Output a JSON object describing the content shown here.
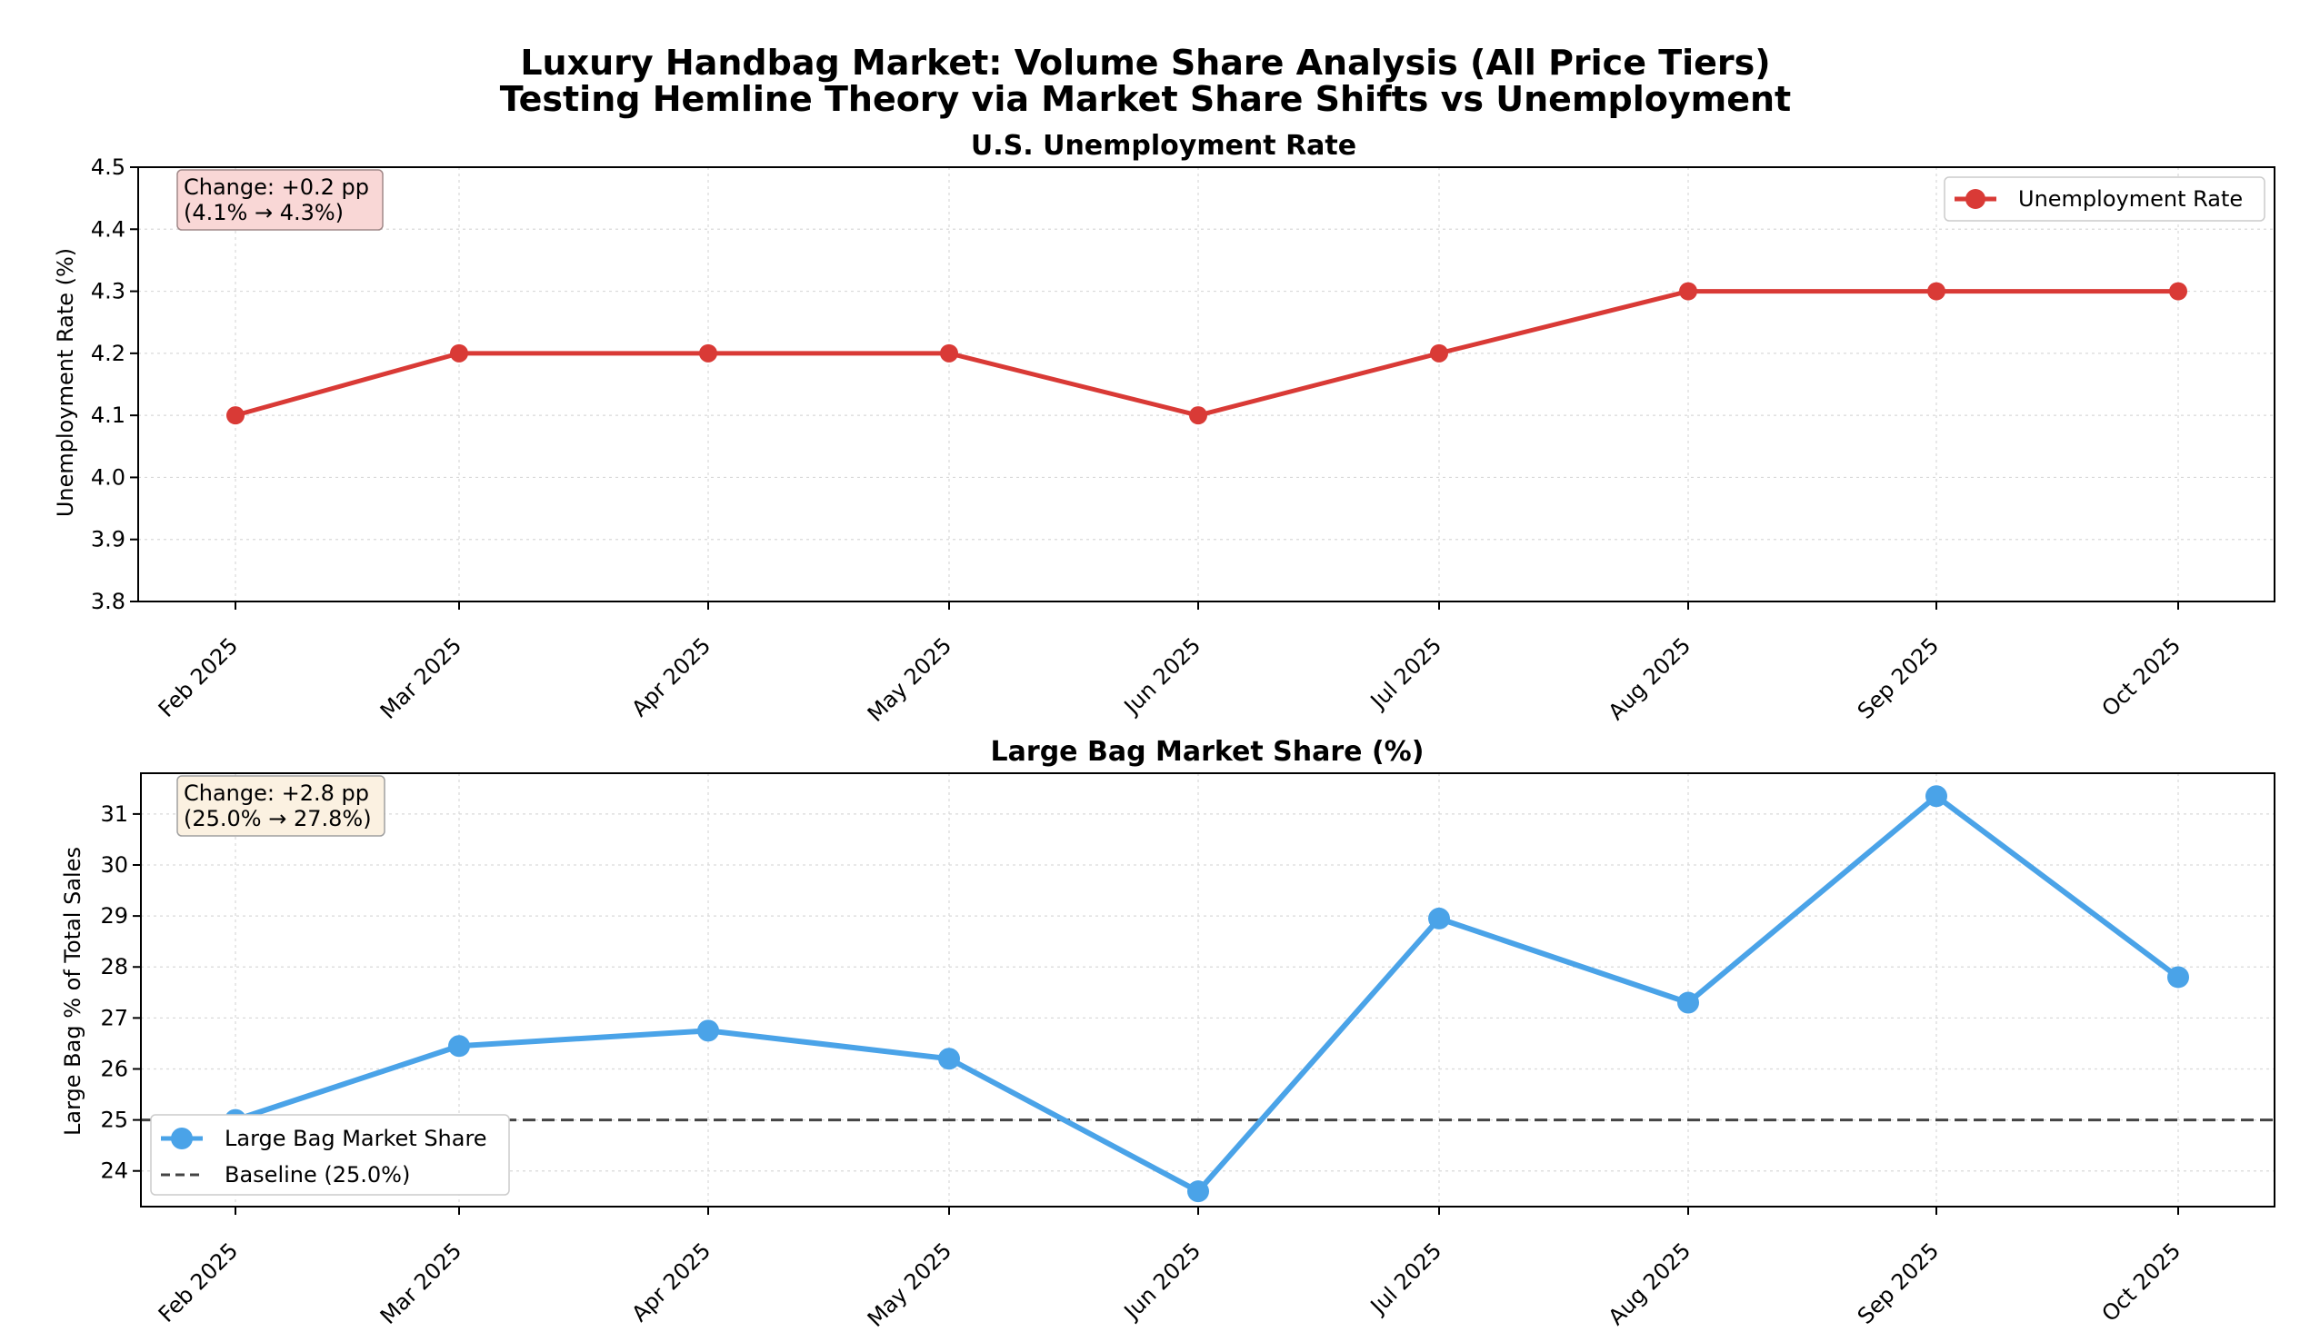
{
  "suptitle": {
    "line1": "Luxury Handbag Market: Volume Share Analysis (All Price Tiers)",
    "line2": "Testing Hemline Theory via Market Share Shifts vs Unemployment"
  },
  "chart_data": [
    {
      "type": "line",
      "title": "U.S. Unemployment Rate",
      "xlabel": "",
      "ylabel": "Unemployment Rate (%)",
      "categories": [
        "Feb 2025",
        "Mar 2025",
        "Apr 2025",
        "May 2025",
        "Jun 2025",
        "Jul 2025",
        "Aug 2025",
        "Sep 2025",
        "Oct 2025"
      ],
      "series": [
        {
          "name": "Unemployment Rate",
          "color": "#d93a36",
          "marker": "circle",
          "values": [
            4.1,
            4.2,
            4.2,
            4.2,
            4.1,
            4.2,
            4.3,
            4.3,
            4.3
          ]
        }
      ],
      "ylim": [
        3.8,
        4.5
      ],
      "yticks": [
        "3.8",
        "3.9",
        "4.0",
        "4.1",
        "4.2",
        "4.3",
        "4.4",
        "4.5"
      ],
      "grid": true,
      "legend_position": "upper-right",
      "annotation": {
        "line1": "Change: +0.2 pp",
        "line2": "(4.1% → 4.3%)",
        "bg": "#f9d7d6",
        "border": "#a88"
      }
    },
    {
      "type": "line",
      "title": "Large Bag Market Share (%)",
      "xlabel": "",
      "ylabel": "Large Bag % of Total Sales",
      "categories": [
        "Feb 2025",
        "Mar 2025",
        "Apr 2025",
        "May 2025",
        "Jun 2025",
        "Jul 2025",
        "Aug 2025",
        "Sep 2025",
        "Oct 2025"
      ],
      "series": [
        {
          "name": "Large Bag Market Share",
          "color": "#4aa3e8",
          "marker": "circle",
          "values": [
            25.0,
            26.45,
            26.75,
            26.2,
            23.6,
            28.95,
            27.3,
            31.35,
            27.8
          ]
        }
      ],
      "baseline": {
        "name": "Baseline (25.0%)",
        "value": 25.0,
        "color": "#444444"
      },
      "ylim": [
        23.3,
        31.8
      ],
      "yticks": [
        "24",
        "25",
        "26",
        "27",
        "28",
        "29",
        "30",
        "31"
      ],
      "grid": true,
      "legend_position": "lower-left",
      "annotation": {
        "line1": "Change: +2.8 pp",
        "line2": "(25.0% → 27.8%)",
        "bg": "#fbf1e1",
        "border": "#aaa"
      }
    }
  ]
}
